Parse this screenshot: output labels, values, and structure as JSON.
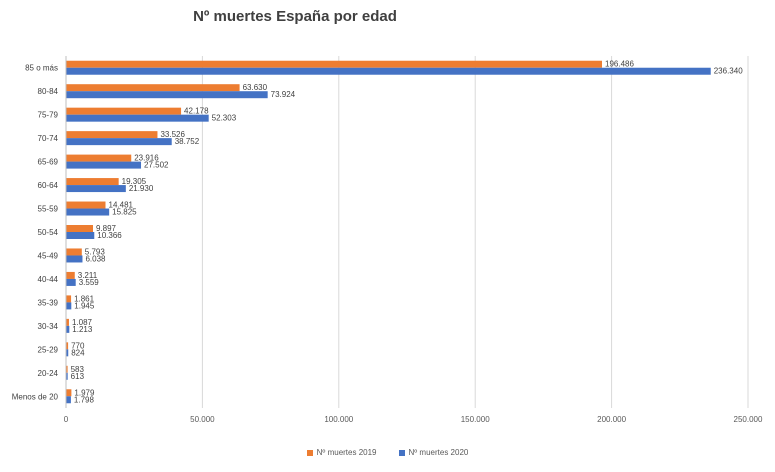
{
  "chart_data": {
    "type": "bar",
    "orientation": "horizontal",
    "title": "Nº muertes España por edad",
    "xlabel": "",
    "ylabel": "",
    "xlim": [
      0,
      250000
    ],
    "xticks": [
      0,
      50000,
      100000,
      150000,
      200000,
      250000
    ],
    "xtick_labels": [
      "0",
      "50.000",
      "100.000",
      "150.000",
      "200.000",
      "250.000"
    ],
    "grid": "vertical",
    "legend_position": "bottom",
    "categories": [
      "85 o más",
      "80-84",
      "75-79",
      "70-74",
      "65-69",
      "60-64",
      "55-59",
      "50-54",
      "45-49",
      "40-44",
      "35-39",
      "30-34",
      "25-29",
      "20-24",
      "Menos de 20"
    ],
    "series": [
      {
        "name": "Nº muertes  2019",
        "color": "#ED7D31",
        "values": [
          196486,
          63630,
          42178,
          33526,
          23916,
          19305,
          14481,
          9897,
          5793,
          3211,
          1861,
          1087,
          770,
          583,
          1979
        ],
        "labels": [
          "196.486",
          "63.630",
          "42.178",
          "33.526",
          "23.916",
          "19.305",
          "14.481",
          "9.897",
          "5.793",
          "3.211",
          "1.861",
          "1.087",
          "770",
          "583",
          "1.979"
        ]
      },
      {
        "name": "Nº muertes  2020",
        "color": "#4472C4",
        "values": [
          236340,
          73924,
          52303,
          38752,
          27502,
          21930,
          15825,
          10366,
          6038,
          3559,
          1945,
          1213,
          824,
          613,
          1798
        ],
        "labels": [
          "236.340",
          "73.924",
          "52.303",
          "38.752",
          "27.502",
          "21.930",
          "15.825",
          "10.366",
          "6.038",
          "3.559",
          "1.945",
          "1.213",
          "824",
          "613",
          "1.798"
        ]
      }
    ]
  }
}
